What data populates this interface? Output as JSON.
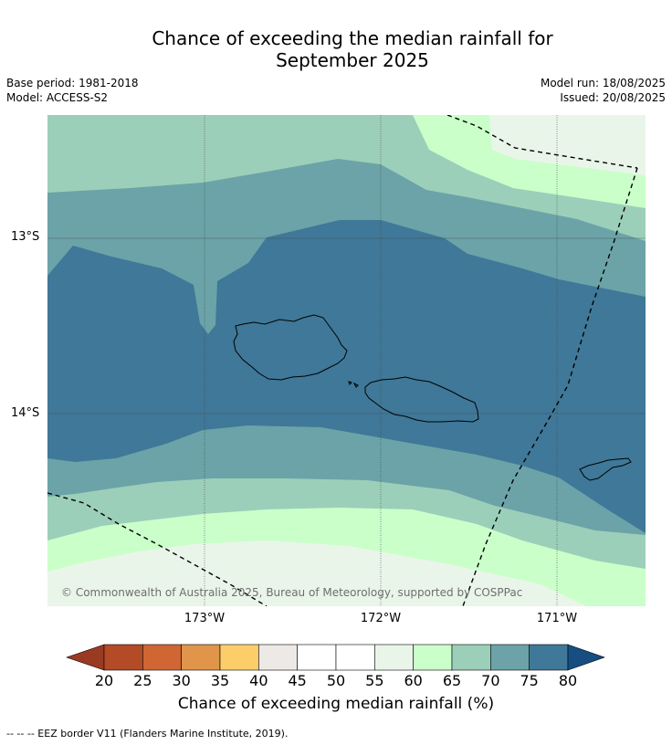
{
  "title_line1": "Chance of exceeding the median rainfall for",
  "title_line2": "September 2025",
  "base_period": "Base period: 1981-2018",
  "model": "Model: ACCESS-S2",
  "model_run": "Model run: 18/08/2025",
  "issued": "Issued: 20/08/2025",
  "latitude_labels": [
    "13°S",
    "14°S"
  ],
  "longitude_labels": [
    "173°W",
    "172°W",
    "171°W"
  ],
  "copyright": "© Commonwealth of Australia 2025, Bureau of Meteorology, supported by COSPPac",
  "colorbar": {
    "label": "Chance of exceeding median rainfall (%)",
    "ticks": [
      "20",
      "25",
      "30",
      "35",
      "40",
      "45",
      "50",
      "55",
      "60",
      "65",
      "70",
      "75",
      "80"
    ],
    "colors": [
      "#b34b26",
      "#cf6634",
      "#e0954a",
      "#fdcd6a",
      "#ece9e6",
      "#ffffff",
      "#ffffff",
      "#eaf5ea",
      "#caffca",
      "#9ccfb9",
      "#6ba3a8",
      "#3f7898"
    ],
    "under_color": "#9b3a22",
    "over_color": "#174e82"
  },
  "map_colors": {
    "p80": "#3f7898",
    "p75": "#6ba3a8",
    "p70": "#9ccfb9",
    "p65": "#caffca",
    "p60": "#eaf5ea"
  },
  "footer": "--  --  -- EEZ border V11 (Flanders Marine Institute, 2019)."
}
